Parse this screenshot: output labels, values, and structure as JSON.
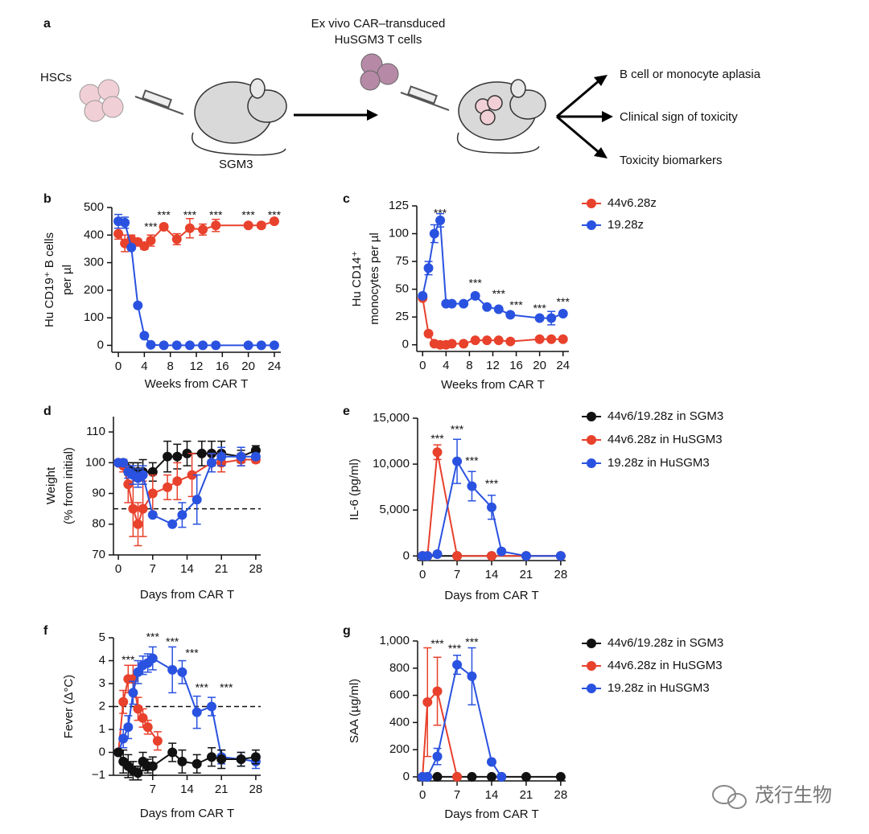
{
  "diagram": {
    "panel_label": "a",
    "hsc_label": "HSCs",
    "mouse_label": "SGM3",
    "tcell_label": [
      "Ex vivo CAR–transduced",
      "HuSGM3 T cells"
    ],
    "outcomes": [
      "B cell or monocyte aplasia",
      "Clinical sign of toxicity",
      "Toxicity biomarkers"
    ]
  },
  "watermark": "茂行生物",
  "chart_data": [
    {
      "type": "line",
      "label": "b",
      "xlabel": "Weeks from CAR T",
      "ylabel": [
        "Hu CD19⁺ B cells",
        "per µl"
      ],
      "xlim": [
        -1,
        25
      ],
      "ylim": [
        -25,
        500
      ],
      "xticks": [
        0,
        4,
        8,
        12,
        16,
        20,
        24
      ],
      "yticks": [
        0,
        100,
        200,
        300,
        400,
        500
      ],
      "series": [
        {
          "color": "#e8412c",
          "x": [
            0,
            1,
            2,
            3,
            4,
            5,
            7,
            9,
            11,
            13,
            15,
            20,
            22,
            24
          ],
          "values": [
            405,
            370,
            385,
            375,
            360,
            380,
            430,
            385,
            425,
            420,
            435,
            435,
            435,
            450
          ],
          "errors": [
            20,
            30,
            15,
            10,
            12,
            20,
            10,
            20,
            35,
            20,
            22,
            8,
            10,
            8
          ]
        },
        {
          "color": "#2a52e0",
          "x": [
            0,
            1,
            2,
            3,
            4,
            5,
            7,
            9,
            11,
            13,
            15,
            20,
            22,
            24
          ],
          "values": [
            450,
            445,
            355,
            145,
            35,
            2,
            0,
            0,
            0,
            0,
            0,
            0,
            0,
            0
          ],
          "errors": [
            25,
            20,
            null,
            null,
            null,
            null,
            null,
            null,
            null,
            null,
            null,
            null,
            null,
            null
          ]
        }
      ],
      "annotations": [
        {
          "text": "***",
          "x": 5,
          "y": 427
        },
        {
          "text": "***",
          "x": 7,
          "y": 470
        },
        {
          "text": "***",
          "x": 11,
          "y": 470
        },
        {
          "text": "***",
          "x": 15,
          "y": 470
        },
        {
          "text": "***",
          "x": 20,
          "y": 470
        },
        {
          "text": "***",
          "x": 24,
          "y": 470
        }
      ]
    },
    {
      "type": "line",
      "label": "c",
      "xlabel": "Weeks from CAR T",
      "ylabel": [
        "Hu CD14⁺",
        "monocytes per µl"
      ],
      "xlim": [
        -1,
        25
      ],
      "ylim": [
        -6,
        125
      ],
      "xticks": [
        0,
        4,
        8,
        12,
        16,
        20,
        24
      ],
      "yticks": [
        0,
        25,
        50,
        75,
        100,
        125
      ],
      "legend": "right",
      "series": [
        {
          "name": "44v6.28z",
          "color": "#e8412c",
          "x": [
            0,
            1,
            2,
            3,
            4,
            5,
            7,
            9,
            11,
            13,
            15,
            20,
            22,
            24
          ],
          "values": [
            42,
            10,
            1,
            0,
            0,
            1,
            1,
            4,
            4,
            4,
            3,
            5,
            5,
            5
          ],
          "errors": [
            null,
            null,
            null,
            null,
            null,
            null,
            null,
            null,
            null,
            null,
            null,
            null,
            null,
            null
          ]
        },
        {
          "name": "19.28z",
          "color": "#2a52e0",
          "x": [
            0,
            1,
            2,
            3,
            4,
            5,
            7,
            9,
            11,
            13,
            15,
            20,
            22,
            24
          ],
          "values": [
            44,
            69,
            100,
            112,
            37,
            37,
            37,
            44,
            34,
            32,
            27,
            24,
            24,
            28
          ],
          "errors": [
            null,
            6,
            8,
            6,
            null,
            null,
            null,
            null,
            null,
            null,
            null,
            null,
            6,
            null
          ]
        }
      ],
      "annotations": [
        {
          "text": "***",
          "x": 3,
          "y": 118
        },
        {
          "text": "***",
          "x": 9,
          "y": 55
        },
        {
          "text": "***",
          "x": 13,
          "y": 45
        },
        {
          "text": "***",
          "x": 16,
          "y": 35
        },
        {
          "text": "***",
          "x": 20,
          "y": 32
        },
        {
          "text": "***",
          "x": 24,
          "y": 38
        }
      ]
    },
    {
      "type": "line",
      "label": "d",
      "xlabel": "Days from CAR T",
      "ylabel": [
        "Weight",
        "(% from initial)"
      ],
      "xlim": [
        -1,
        29
      ],
      "ylim": [
        70,
        115
      ],
      "xticks": [
        0,
        7,
        14,
        21,
        28
      ],
      "yticks": [
        70,
        80,
        90,
        100,
        110
      ],
      "hline": 85,
      "series": [
        {
          "color": "#111111",
          "x": [
            0,
            1,
            2,
            3,
            4,
            5,
            7,
            10,
            12,
            14,
            17,
            19,
            21,
            25,
            28
          ],
          "values": [
            100,
            100,
            98,
            97,
            97,
            97,
            97,
            102,
            102,
            103,
            103,
            103,
            103,
            102,
            104
          ],
          "errors": [
            null,
            1,
            2,
            3,
            3,
            4,
            3,
            5,
            4,
            4,
            4,
            4,
            4,
            2,
            1.5
          ]
        },
        {
          "color": "#e8412c",
          "x": [
            0,
            1,
            2,
            3,
            4,
            5,
            7,
            10,
            12,
            15,
            19,
            21,
            25,
            28
          ],
          "values": [
            100,
            99,
            93,
            85,
            80,
            85,
            90,
            92,
            94,
            96,
            100,
            100,
            101,
            101
          ],
          "errors": [
            null,
            2,
            6,
            9,
            7,
            9,
            6,
            4,
            6,
            7,
            3,
            3,
            2,
            1
          ]
        },
        {
          "color": "#2a52e0",
          "x": [
            0,
            1,
            2,
            3,
            4,
            5,
            7,
            11,
            13,
            16,
            19,
            21,
            25,
            28
          ],
          "values": [
            100,
            100,
            97,
            96,
            95,
            96,
            83,
            80,
            83,
            88,
            100,
            102,
            102,
            102
          ],
          "errors": [
            null,
            1,
            2,
            3,
            3,
            3,
            null,
            null,
            4,
            8,
            3,
            3,
            3,
            1
          ]
        }
      ]
    },
    {
      "type": "line",
      "label": "e",
      "xlabel": "Days from CAR T",
      "ylabel": [
        "IL-6 (pg/ml)"
      ],
      "xlim": [
        -1,
        29
      ],
      "ylim": [
        -500,
        15000
      ],
      "xticks": [
        0,
        7,
        14,
        21,
        28
      ],
      "yticks": [
        0,
        {
          "value": 5000,
          "label": "5,000"
        },
        {
          "value": 10000,
          "label": "10,000"
        },
        {
          "value": 15000,
          "label": "15,000"
        }
      ],
      "legend": "right",
      "series": [
        {
          "name": "44v6/19.28z in SGM3",
          "color": "#111111",
          "x": [
            0,
            1,
            7,
            14,
            21,
            28
          ],
          "values": [
            0,
            0,
            0,
            0,
            0,
            0
          ],
          "errors": [
            null,
            null,
            null,
            null,
            null,
            null
          ]
        },
        {
          "name": "44v6.28z in HuSGM3",
          "color": "#e8412c",
          "x": [
            0,
            1,
            3,
            7,
            14,
            21,
            28
          ],
          "values": [
            0,
            0,
            11300,
            0,
            0,
            0,
            0
          ],
          "errors": [
            null,
            null,
            800,
            null,
            null,
            null,
            null
          ]
        },
        {
          "name": "19.28z in HuSGM3",
          "color": "#2a52e0",
          "x": [
            0,
            1,
            3,
            7,
            10,
            14,
            16,
            21,
            28
          ],
          "values": [
            0,
            0,
            200,
            10300,
            7600,
            5300,
            500,
            0,
            0
          ],
          "errors": [
            null,
            null,
            null,
            2400,
            1600,
            1300,
            null,
            null,
            null
          ]
        }
      ],
      "annotations": [
        {
          "text": "***",
          "x": 3,
          "y": 12700
        },
        {
          "text": "***",
          "x": 7,
          "y": 13700
        },
        {
          "text": "***",
          "x": 10,
          "y": 10300
        },
        {
          "text": "***",
          "x": 14,
          "y": 7800
        }
      ]
    },
    {
      "type": "line",
      "label": "f",
      "xlabel": "Days from CAR T",
      "ylabel": [
        "Fever (Δ°C)"
      ],
      "xlim": [
        -1,
        29
      ],
      "ylim": [
        -1,
        5
      ],
      "xticks": [
        7,
        14,
        21,
        28
      ],
      "yticks": [
        {
          "value": -1,
          "label": "−1"
        },
        0,
        1,
        2,
        3,
        4,
        5
      ],
      "hline": 2,
      "series": [
        {
          "color": "#e8412c",
          "x": [
            0,
            1,
            2,
            3,
            4,
            5,
            6,
            8
          ],
          "values": [
            0,
            2.2,
            3.2,
            3.2,
            1.9,
            1.5,
            1.1,
            0.5
          ],
          "errors": [
            null,
            0.5,
            0.6,
            0.6,
            0.5,
            0.4,
            0.3,
            0.4
          ]
        },
        {
          "color": "#2a52e0",
          "x": [
            0,
            1,
            2,
            3,
            4,
            5,
            6,
            7,
            11,
            13,
            16,
            19,
            21,
            25,
            28
          ],
          "values": [
            0,
            0.6,
            1.1,
            2.6,
            3.5,
            3.8,
            3.9,
            4.1,
            3.6,
            3.5,
            1.75,
            2.0,
            -0.2,
            -0.3,
            -0.4
          ],
          "errors": [
            null,
            0.4,
            0.5,
            0.5,
            0.5,
            0.4,
            0.4,
            0.5,
            1.0,
            0.5,
            0.7,
            0.4,
            0.3,
            0.3,
            0.3
          ]
        },
        {
          "color": "#111111",
          "x": [
            0,
            1,
            2,
            3,
            4,
            5,
            6,
            7,
            11,
            13,
            16,
            19,
            21,
            25,
            28
          ],
          "values": [
            0,
            -0.4,
            -0.6,
            -0.8,
            -0.9,
            -0.4,
            -0.6,
            -0.6,
            0,
            -0.4,
            -0.5,
            -0.2,
            -0.3,
            -0.3,
            -0.2
          ],
          "errors": [
            null,
            0.5,
            0.5,
            0.4,
            0.3,
            0.4,
            0.3,
            0.4,
            0.4,
            0.5,
            0.4,
            0.4,
            0.4,
            0.3,
            0.3
          ]
        }
      ],
      "annotations": [
        {
          "text": "***",
          "x": 2,
          "y": 4.0
        },
        {
          "text": "***",
          "x": 7,
          "y": 5.0
        },
        {
          "text": "***",
          "x": 11,
          "y": 4.8
        },
        {
          "text": "***",
          "x": 15,
          "y": 4.3
        },
        {
          "text": "***",
          "x": 17,
          "y": 2.8
        },
        {
          "text": "***",
          "x": 22,
          "y": 2.8
        }
      ]
    },
    {
      "type": "line",
      "label": "g",
      "xlabel": "Days from CAR T",
      "ylabel": [
        "SAA (µg/ml)"
      ],
      "xlim": [
        -1,
        29
      ],
      "ylim": [
        -30,
        1000
      ],
      "xticks": [
        0,
        7,
        14,
        21,
        28
      ],
      "yticks": [
        0,
        200,
        400,
        600,
        800,
        {
          "value": 1000,
          "label": "1,000"
        }
      ],
      "legend": "right",
      "series": [
        {
          "name": "44v6/19.28z in SGM3",
          "color": "#111111",
          "x": [
            0,
            1,
            3,
            7,
            10,
            14,
            16,
            21,
            28
          ],
          "values": [
            0,
            0,
            0,
            0,
            0,
            0,
            0,
            0,
            0
          ],
          "errors": [
            null,
            null,
            null,
            null,
            null,
            null,
            null,
            null,
            null
          ]
        },
        {
          "name": "44v6.28z in HuSGM3",
          "color": "#e8412c",
          "x": [
            0,
            1,
            3,
            7
          ],
          "values": [
            0,
            550,
            630,
            0
          ],
          "errors": [
            null,
            400,
            250,
            null
          ]
        },
        {
          "name": "19.28z in HuSGM3",
          "color": "#2a52e0",
          "x": [
            0,
            1,
            3,
            7,
            10,
            14,
            16
          ],
          "values": [
            0,
            0,
            150,
            825,
            740,
            110,
            0
          ],
          "errors": [
            null,
            null,
            60,
            70,
            210,
            null,
            null
          ]
        }
      ],
      "annotations": [
        {
          "text": "***",
          "x": 3,
          "y": 975
        },
        {
          "text": "***",
          "x": 6.5,
          "y": 940
        },
        {
          "text": "***",
          "x": 10,
          "y": 985
        }
      ]
    }
  ]
}
